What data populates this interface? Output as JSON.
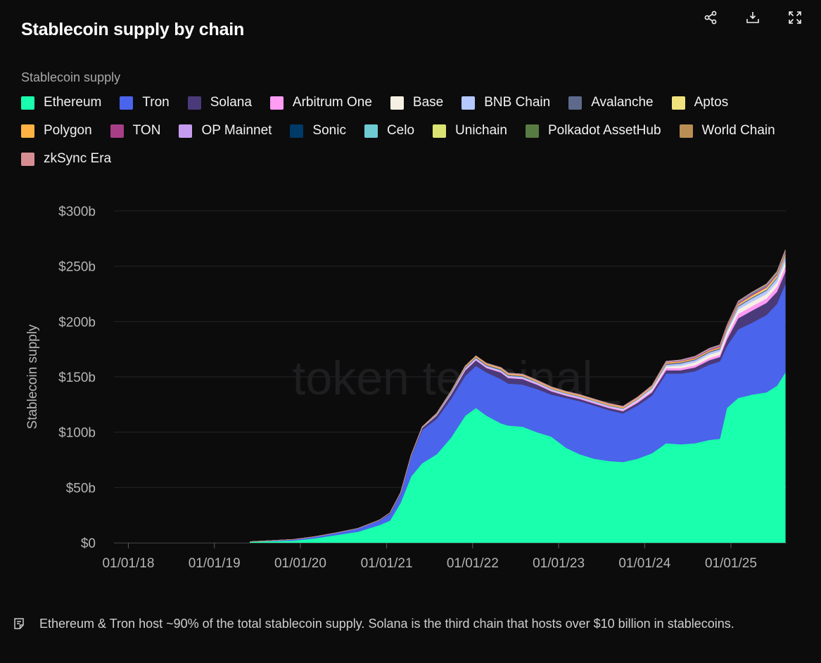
{
  "header": {
    "title": "Stablecoin supply by chain",
    "actions": [
      {
        "name": "share-icon"
      },
      {
        "name": "download-icon"
      },
      {
        "name": "expand-icon"
      }
    ]
  },
  "legend_title": "Stablecoin supply",
  "chart_data": {
    "type": "area",
    "stacked": true,
    "ylabel": "Stablecoin supply",
    "watermark": "token terminal_",
    "ylim": [
      0,
      300
    ],
    "yticks": [
      0,
      50,
      100,
      150,
      200,
      250,
      300
    ],
    "ytick_labels": [
      "$0",
      "$50b",
      "$100b",
      "$150b",
      "$200b",
      "$250b",
      "$300b"
    ],
    "xlim": [
      "2017-11-01",
      "2025-08-25"
    ],
    "xticks": [
      "2018-01-01",
      "2019-01-01",
      "2020-01-01",
      "2021-01-01",
      "2022-01-01",
      "2023-01-01",
      "2024-01-01",
      "2025-01-01"
    ],
    "xtick_labels": [
      "01/01/18",
      "01/01/19",
      "01/01/20",
      "01/01/21",
      "01/01/22",
      "01/01/23",
      "01/01/24",
      "01/01/25"
    ],
    "grid": true,
    "legend_position": "top",
    "x": [
      "2019-06-01",
      "2019-12-01",
      "2020-03-01",
      "2020-06-01",
      "2020-09-01",
      "2020-12-01",
      "2021-01-15",
      "2021-03-01",
      "2021-04-15",
      "2021-06-01",
      "2021-08-01",
      "2021-10-01",
      "2021-12-01",
      "2022-01-15",
      "2022-03-01",
      "2022-05-01",
      "2022-06-01",
      "2022-08-01",
      "2022-10-01",
      "2022-12-01",
      "2023-02-01",
      "2023-04-01",
      "2023-06-01",
      "2023-08-01",
      "2023-10-01",
      "2023-12-01",
      "2024-02-01",
      "2024-04-01",
      "2024-06-01",
      "2024-08-01",
      "2024-10-01",
      "2024-11-15",
      "2024-12-15",
      "2025-02-01",
      "2025-04-01",
      "2025-06-01",
      "2025-07-15",
      "2025-08-20"
    ],
    "series": [
      {
        "name": "Ethereum",
        "color": "#1affad",
        "values": [
          1,
          2,
          4,
          7,
          10,
          16,
          20,
          36,
          60,
          72,
          80,
          95,
          115,
          122,
          115,
          108,
          106,
          105,
          100,
          96,
          86,
          80,
          76,
          74,
          73,
          76,
          81,
          90,
          89,
          90,
          93,
          94,
          122,
          131,
          134,
          136,
          142,
          154
        ]
      },
      {
        "name": "Tron",
        "color": "#4a64eb",
        "values": [
          0,
          1,
          1.5,
          2,
          3,
          4,
          6,
          8,
          18,
          30,
          32,
          35,
          36,
          38,
          39,
          40,
          38,
          38,
          39,
          38,
          45,
          48,
          48,
          46,
          44,
          48,
          52,
          63,
          64,
          65,
          68,
          70,
          56,
          62,
          65,
          70,
          74,
          80
        ]
      },
      {
        "name": "Solana",
        "color": "#4a3a7a",
        "values": [
          0,
          0,
          0,
          0,
          0,
          0.5,
          1,
          1,
          1,
          2,
          3,
          4,
          5,
          5,
          4,
          6,
          5,
          5,
          4,
          3,
          2,
          2,
          2,
          2,
          2,
          2.5,
          3,
          3,
          3,
          3.5,
          4,
          4,
          6,
          10,
          11,
          11,
          11,
          11
        ]
      },
      {
        "name": "Arbitrum One",
        "color": "#ff9cf4",
        "values": [
          0,
          0,
          0,
          0,
          0,
          0,
          0,
          0,
          0,
          0,
          0.5,
          0.5,
          1,
          1,
          1,
          1,
          1,
          1,
          1,
          1,
          1,
          1,
          1,
          1,
          1,
          1.5,
          1.5,
          2,
          2,
          2,
          2,
          2,
          3,
          4,
          4,
          4,
          4.5,
          5
        ]
      },
      {
        "name": "Base",
        "color": "#f6f0e2",
        "values": [
          0,
          0,
          0,
          0,
          0,
          0,
          0,
          0,
          0,
          0,
          0,
          0,
          0,
          0,
          0,
          0,
          0,
          0,
          0,
          0,
          0,
          0,
          0,
          0,
          0.3,
          0.5,
          1,
          1.5,
          2,
          2.5,
          3,
          3,
          3.5,
          4,
          4,
          4,
          4,
          4.5
        ]
      },
      {
        "name": "BNB Chain",
        "color": "#b5c8ff",
        "values": [
          0,
          0,
          0,
          0,
          0,
          0,
          0,
          0.2,
          0.3,
          0.5,
          0.5,
          1,
          1,
          1,
          1,
          1,
          1,
          1,
          1,
          1,
          1,
          1,
          1,
          1,
          1,
          1,
          1.5,
          1.5,
          2,
          2,
          2,
          2,
          2,
          2.5,
          3,
          3,
          3.5,
          4
        ]
      },
      {
        "name": "Avalanche",
        "color": "#5e6a8c",
        "values": [
          0,
          0,
          0,
          0,
          0,
          0,
          0,
          0,
          0,
          0,
          0.5,
          1,
          1,
          1,
          1,
          1,
          1,
          1,
          0.5,
          0.5,
          0.5,
          0.5,
          0.5,
          0.5,
          0.5,
          0.5,
          0.5,
          1,
          1,
          1,
          1,
          1,
          1,
          1,
          1,
          1,
          1,
          1
        ]
      },
      {
        "name": "Aptos",
        "color": "#f0e27c",
        "values": [
          0,
          0,
          0,
          0,
          0,
          0,
          0,
          0,
          0,
          0,
          0,
          0,
          0,
          0,
          0,
          0,
          0,
          0,
          0,
          0,
          0,
          0,
          0,
          0,
          0,
          0,
          0,
          0,
          0,
          0,
          0,
          0,
          0.3,
          0.5,
          0.8,
          1,
          1,
          1
        ]
      },
      {
        "name": "Polygon",
        "color": "#ffb243",
        "values": [
          0,
          0,
          0,
          0,
          0,
          0,
          0,
          0,
          0,
          0.3,
          0.5,
          0.5,
          1,
          1,
          1,
          1,
          1,
          1,
          1,
          1,
          1,
          1,
          1,
          1,
          1,
          1,
          1,
          1,
          1,
          1,
          1,
          1,
          1,
          1,
          1,
          1,
          1,
          1
        ]
      },
      {
        "name": "TON",
        "color": "#a83e86",
        "values": [
          0,
          0,
          0,
          0,
          0,
          0,
          0,
          0,
          0,
          0,
          0,
          0,
          0,
          0,
          0,
          0,
          0,
          0,
          0,
          0,
          0,
          0,
          0,
          0,
          0,
          0,
          0,
          0.3,
          0.5,
          0.7,
          0.8,
          1,
          1,
          1,
          1,
          1,
          1,
          1
        ]
      },
      {
        "name": "OP Mainnet",
        "color": "#c69cf0",
        "values": [
          0,
          0,
          0,
          0,
          0,
          0,
          0,
          0,
          0,
          0,
          0,
          0,
          0,
          0,
          0.3,
          0.5,
          0.5,
          0.5,
          0.5,
          0.5,
          0.5,
          0.5,
          0.5,
          0.5,
          0.5,
          0.5,
          0.5,
          0.5,
          0.5,
          0.5,
          0.5,
          0.5,
          0.5,
          0.5,
          0.5,
          0.5,
          0.5,
          0.5
        ]
      },
      {
        "name": "Sonic",
        "color": "#003a66",
        "values": [
          0,
          0,
          0,
          0,
          0,
          0,
          0,
          0,
          0,
          0,
          0,
          0,
          0,
          0,
          0,
          0,
          0,
          0,
          0,
          0,
          0,
          0,
          0,
          0,
          0,
          0,
          0,
          0,
          0,
          0,
          0,
          0,
          0,
          0.2,
          0.4,
          0.4,
          0.4,
          0.4
        ]
      },
      {
        "name": "Celo",
        "color": "#6fcad2",
        "values": [
          0,
          0,
          0,
          0,
          0,
          0,
          0,
          0,
          0,
          0,
          0,
          0,
          0,
          0,
          0,
          0,
          0,
          0,
          0,
          0,
          0,
          0,
          0,
          0,
          0,
          0,
          0.1,
          0.2,
          0.2,
          0.2,
          0.3,
          0.3,
          0.3,
          0.3,
          0.3,
          0.3,
          0.3,
          0.3
        ]
      },
      {
        "name": "Unichain",
        "color": "#dbe372",
        "values": [
          0,
          0,
          0,
          0,
          0,
          0,
          0,
          0,
          0,
          0,
          0,
          0,
          0,
          0,
          0,
          0,
          0,
          0,
          0,
          0,
          0,
          0,
          0,
          0,
          0,
          0,
          0,
          0,
          0,
          0,
          0,
          0,
          0,
          0.1,
          0.2,
          0.3,
          0.4,
          0.5
        ]
      },
      {
        "name": "Polkadot AssetHub",
        "color": "#587a43",
        "values": [
          0,
          0,
          0,
          0,
          0,
          0,
          0,
          0,
          0,
          0,
          0,
          0,
          0,
          0,
          0,
          0,
          0,
          0,
          0,
          0,
          0,
          0,
          0,
          0,
          0,
          0,
          0,
          0,
          0,
          0,
          0,
          0,
          0,
          0.1,
          0.1,
          0.1,
          0.1,
          0.1
        ]
      },
      {
        "name": "World Chain",
        "color": "#b98e55",
        "values": [
          0,
          0,
          0,
          0,
          0,
          0,
          0,
          0,
          0,
          0,
          0,
          0,
          0,
          0,
          0,
          0,
          0,
          0,
          0,
          0,
          0,
          0,
          0,
          0,
          0,
          0,
          0,
          0,
          0,
          0,
          0,
          0,
          0.1,
          0.2,
          0.2,
          0.3,
          0.3,
          0.4
        ]
      },
      {
        "name": "zkSync Era",
        "color": "#d68e93",
        "values": [
          0,
          0,
          0,
          0,
          0,
          0,
          0,
          0,
          0,
          0,
          0,
          0,
          0,
          0,
          0,
          0,
          0,
          0,
          0,
          0,
          0,
          0,
          0,
          0.2,
          0.2,
          0.2,
          0.2,
          0.2,
          0.2,
          0.2,
          0.2,
          0.2,
          0.2,
          0.2,
          0.2,
          0.2,
          0.2,
          0.2
        ]
      }
    ]
  },
  "footnote": "Ethereum & Tron host ~90% of the total stablecoin supply. Solana is the third chain that hosts over $10 billion in stablecoins."
}
